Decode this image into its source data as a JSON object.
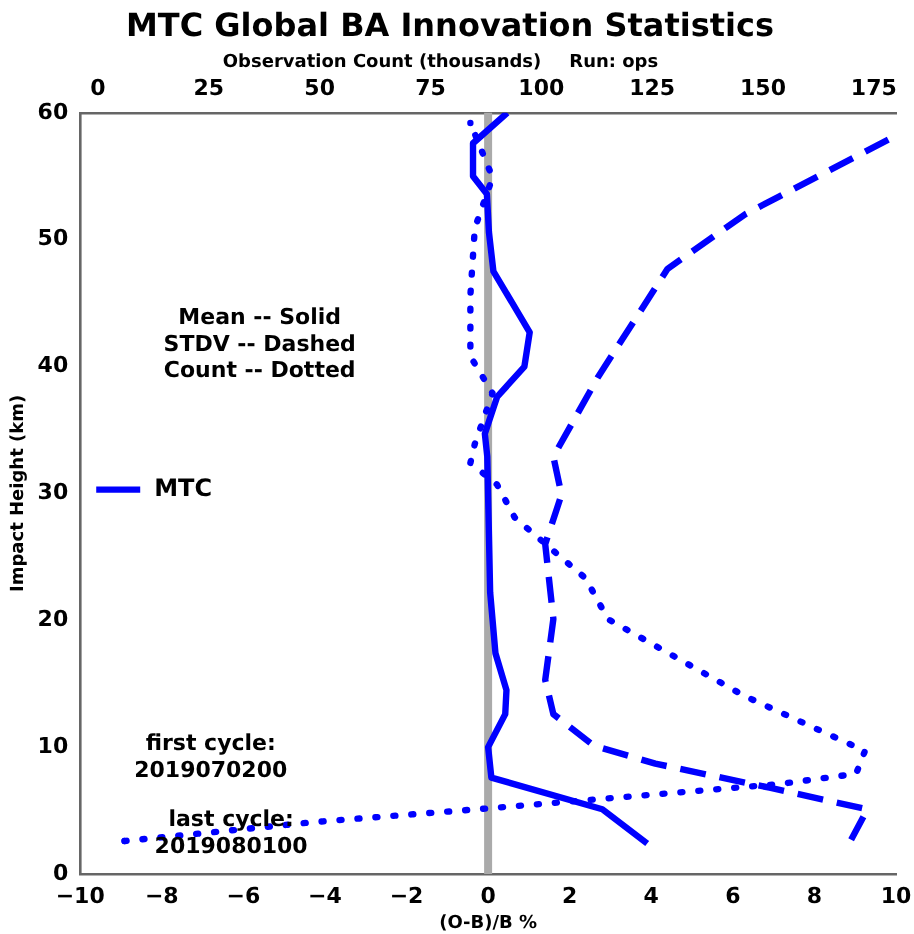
{
  "chart_data": {
    "type": "line",
    "title": "MTC Global BA Innovation Statistics",
    "xlabel": "(O-B)/B %",
    "ylabel": "Impact Height (km)",
    "x2label": "Observation Count (thousands)",
    "xlim": [
      -10,
      10
    ],
    "xticks": [
      {
        "value": -10,
        "label": "−10"
      },
      {
        "value": -8,
        "label": "−8"
      },
      {
        "value": -6,
        "label": "−6"
      },
      {
        "value": -4,
        "label": "−4"
      },
      {
        "value": -2,
        "label": "−2"
      },
      0,
      2,
      4,
      6,
      8,
      10
    ],
    "x2lim": [
      -4,
      180
    ],
    "x2ticks": [
      0,
      25,
      50,
      75,
      100,
      125,
      150,
      175
    ],
    "ylim": [
      0,
      60
    ],
    "yticks": [
      0,
      10,
      20,
      30,
      40,
      50,
      60
    ],
    "grid": false,
    "legend": "center left",
    "marker": "none",
    "ref_lines": [
      {
        "axis": "x",
        "value": 0,
        "color": "#aaaaaa"
      }
    ],
    "annotations": [
      "Mean -- Solid",
      "STDV -- Dashed",
      "Count -- Dotted",
      "first cycle:",
      "2019070200",
      "last cycle:",
      "2019080100",
      "Run: ops"
    ],
    "series": [
      {
        "name": "MTC",
        "color": "#0000ff",
        "line_style": "solid",
        "x": [
          3.9,
          2.8,
          0.08,
          0,
          0.42,
          0.45,
          0.18,
          0.05,
          -0.02,
          -0.08,
          0.22,
          0.89,
          1.02,
          0.13,
          0.02,
          -0.03,
          -0.37,
          -0.37,
          0.47
        ],
        "values": [
          2.4,
          5.1,
          7.6,
          10,
          12.6,
          14.5,
          17.4,
          22.2,
          32.9,
          34.7,
          37.6,
          40,
          42.7,
          47.5,
          50.6,
          53.6,
          55,
          57.6,
          60
        ]
      },
      {
        "color": "#0000ff",
        "line_style": "dashed",
        "x": [
          8.9,
          9.3,
          6.9,
          4.1,
          2.6,
          1.6,
          1.4,
          1.6,
          1.4,
          1.8,
          1.6,
          2.7,
          4.4,
          6.3,
          10
        ],
        "values": [
          2.7,
          5.1,
          6.8,
          8.7,
          10.1,
          12.6,
          15.3,
          20.1,
          26,
          29.9,
          32.9,
          39.2,
          47.7,
          52,
          58.2
        ]
      },
      {
        "color": "#0000ff",
        "line_style": "dotted",
        "axis": "x2",
        "x": [
          6,
          49,
          89,
          154,
          171,
          173,
          146,
          115,
          110,
          94,
          90,
          84,
          85,
          89,
          84,
          84,
          85,
          89,
          84
        ],
        "values": [
          2.6,
          4.1,
          5.2,
          7.1,
          7.9,
          9.7,
          14,
          20.1,
          23.3,
          28.1,
          30.7,
          32.4,
          33.9,
          37.9,
          40.8,
          45.6,
          50.9,
          54.9,
          59.2
        ]
      }
    ]
  }
}
